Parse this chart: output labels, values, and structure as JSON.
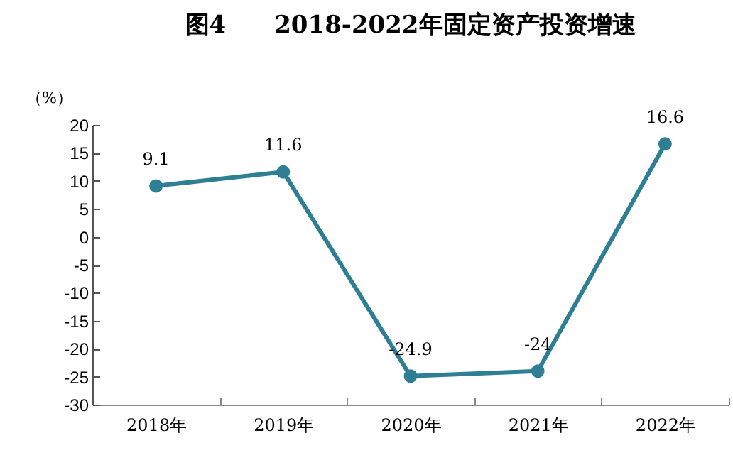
{
  "chart_data": {
    "type": "line",
    "title": "图4　　2018-2022年固定资产投资增速",
    "ylabel": "（%）",
    "categories": [
      "2018年",
      "2019年",
      "2020年",
      "2021年",
      "2022年"
    ],
    "series": [
      {
        "color": "#2e7f93",
        "values": [
          9.1,
          11.6,
          -24.9,
          -24,
          16.6
        ]
      }
    ],
    "ylim": [
      -30,
      20
    ],
    "yticks": [
      -30,
      -25,
      -20,
      -15,
      -10,
      -5,
      0,
      5,
      10,
      15,
      20
    ],
    "data_labels": true,
    "marker": "circle",
    "grid": false,
    "legend": false,
    "line_style": "solid"
  }
}
